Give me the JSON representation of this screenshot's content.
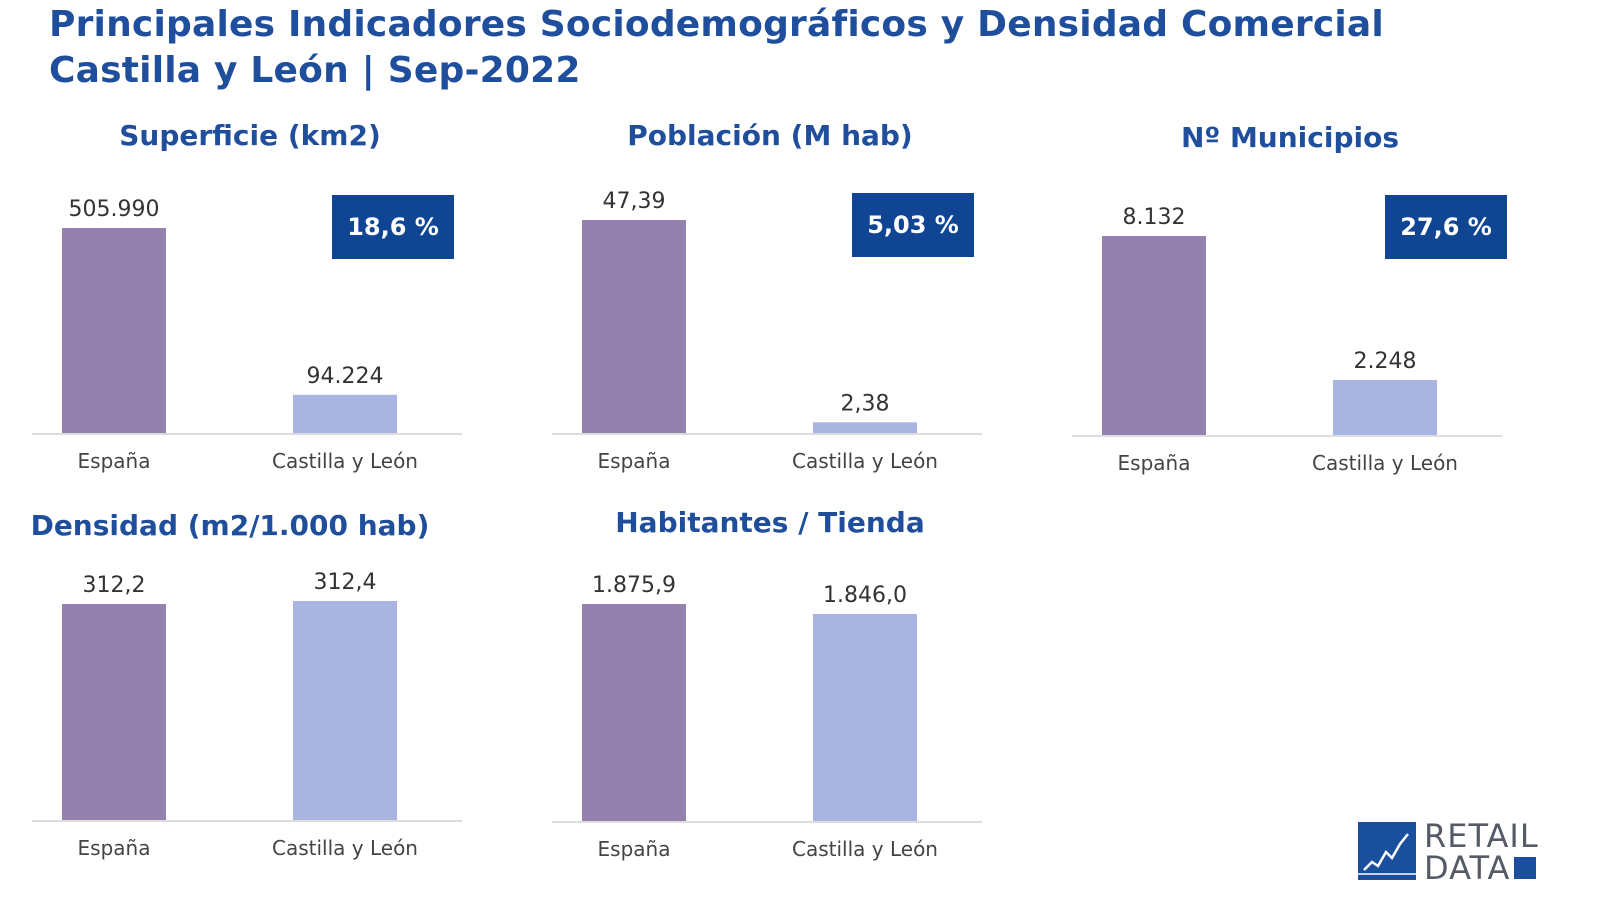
{
  "title": {
    "line1": "Principales Indicadores Sociodemográficos y Densidad Comercial",
    "line2": "Castilla y León | Sep-2022"
  },
  "colors": {
    "spain": "#9481ad",
    "cyl": "#aab4e0",
    "badge": "#0f4593",
    "title": "#1f4e9c"
  },
  "chart_data": [
    {
      "type": "bar",
      "title": "Superficie (km2)",
      "categories": [
        "España",
        "Castilla y León"
      ],
      "values": [
        505990,
        94224
      ],
      "value_labels": [
        "505.990",
        "94.224"
      ],
      "badge": "18,6 %"
    },
    {
      "type": "bar",
      "title": "Población (M hab)",
      "categories": [
        "España",
        "Castilla y León"
      ],
      "values": [
        47.39,
        2.38
      ],
      "value_labels": [
        "47,39",
        "2,38"
      ],
      "badge": "5,03 %"
    },
    {
      "type": "bar",
      "title": "Nº Municipios",
      "categories": [
        "España",
        "Castilla y León"
      ],
      "values": [
        8132,
        2248
      ],
      "value_labels": [
        "8.132",
        "2.248"
      ],
      "badge": "27,6 %"
    },
    {
      "type": "bar",
      "title": "Densidad (m2/1.000 hab)",
      "categories": [
        "España",
        "Castilla y León"
      ],
      "values": [
        312.2,
        312.4
      ],
      "value_labels": [
        "312,2",
        "312,4"
      ]
    },
    {
      "type": "bar",
      "title": "Habitantes / Tienda",
      "categories": [
        "España",
        "Castilla y León"
      ],
      "values": [
        1875.9,
        1846.0
      ],
      "value_labels": [
        "1.875,9",
        "1.846,0"
      ]
    }
  ],
  "logo": {
    "line1": "RETAIL",
    "line2": "DATA"
  }
}
